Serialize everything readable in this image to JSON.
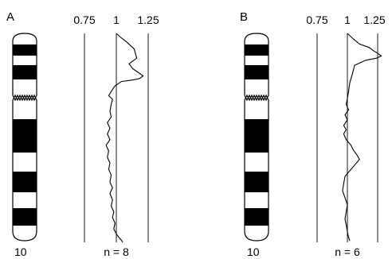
{
  "panels": [
    {
      "id": "A",
      "label": "A",
      "chromosome": "10",
      "n_label": "n = 8",
      "ticks": [
        "0.75",
        "1",
        "1.25"
      ],
      "profile": [
        [
          1.0,
          0
        ],
        [
          1.03,
          5
        ],
        [
          1.08,
          12
        ],
        [
          1.14,
          22
        ],
        [
          1.16,
          35
        ],
        [
          1.1,
          43
        ],
        [
          1.13,
          50
        ],
        [
          1.17,
          55
        ],
        [
          1.21,
          60
        ],
        [
          1.18,
          64
        ],
        [
          1.12,
          66
        ],
        [
          1.04,
          68
        ],
        [
          0.99,
          74
        ],
        [
          0.96,
          82
        ],
        [
          0.94,
          88
        ],
        [
          0.97,
          93
        ],
        [
          0.96,
          100
        ],
        [
          0.95,
          110
        ],
        [
          0.96,
          118
        ],
        [
          0.93,
          126
        ],
        [
          0.95,
          134
        ],
        [
          0.93,
          142
        ],
        [
          0.95,
          150
        ],
        [
          0.92,
          158
        ],
        [
          0.94,
          166
        ],
        [
          0.93,
          175
        ],
        [
          0.95,
          183
        ],
        [
          0.94,
          192
        ],
        [
          0.96,
          200
        ],
        [
          0.95,
          210
        ],
        [
          0.97,
          218
        ],
        [
          0.95,
          226
        ],
        [
          0.97,
          235
        ],
        [
          0.96,
          244
        ],
        [
          0.98,
          252
        ],
        [
          0.97,
          260
        ],
        [
          0.99,
          268
        ],
        [
          0.98,
          276
        ],
        [
          1.0,
          283
        ],
        [
          1.02,
          288
        ],
        [
          1.04,
          292
        ],
        [
          1.05,
          295
        ]
      ],
      "colors": {
        "ink": "#000000",
        "band": "#000000",
        "paper": "#ffffff"
      }
    },
    {
      "id": "B",
      "label": "B",
      "chromosome": "10",
      "n_label": "n = 6",
      "ticks": [
        "0.75",
        "1",
        "1.25"
      ],
      "profile": [
        [
          1.0,
          0
        ],
        [
          1.05,
          8
        ],
        [
          1.1,
          15
        ],
        [
          1.18,
          20
        ],
        [
          1.22,
          25
        ],
        [
          1.25,
          28
        ],
        [
          1.28,
          32
        ],
        [
          1.24,
          35
        ],
        [
          1.15,
          38
        ],
        [
          1.06,
          45
        ],
        [
          1.04,
          58
        ],
        [
          1.02,
          70
        ],
        [
          1.01,
          82
        ],
        [
          1.0,
          92
        ],
        [
          0.99,
          100
        ],
        [
          1.01,
          108
        ],
        [
          0.98,
          115
        ],
        [
          1.0,
          122
        ],
        [
          0.97,
          130
        ],
        [
          0.99,
          136
        ],
        [
          0.97,
          142
        ],
        [
          0.99,
          150
        ],
        [
          1.03,
          158
        ],
        [
          1.05,
          165
        ],
        [
          1.08,
          172
        ],
        [
          1.1,
          178
        ],
        [
          1.06,
          186
        ],
        [
          1.02,
          194
        ],
        [
          0.98,
          202
        ],
        [
          0.97,
          212
        ],
        [
          0.96,
          222
        ],
        [
          0.98,
          232
        ],
        [
          1.0,
          242
        ],
        [
          0.99,
          252
        ],
        [
          0.98,
          262
        ],
        [
          0.99,
          270
        ],
        [
          1.0,
          280
        ],
        [
          1.01,
          288
        ],
        [
          1.02,
          293
        ]
      ],
      "colors": {
        "ink": "#000000",
        "band": "#000000",
        "paper": "#ffffff"
      }
    }
  ]
}
